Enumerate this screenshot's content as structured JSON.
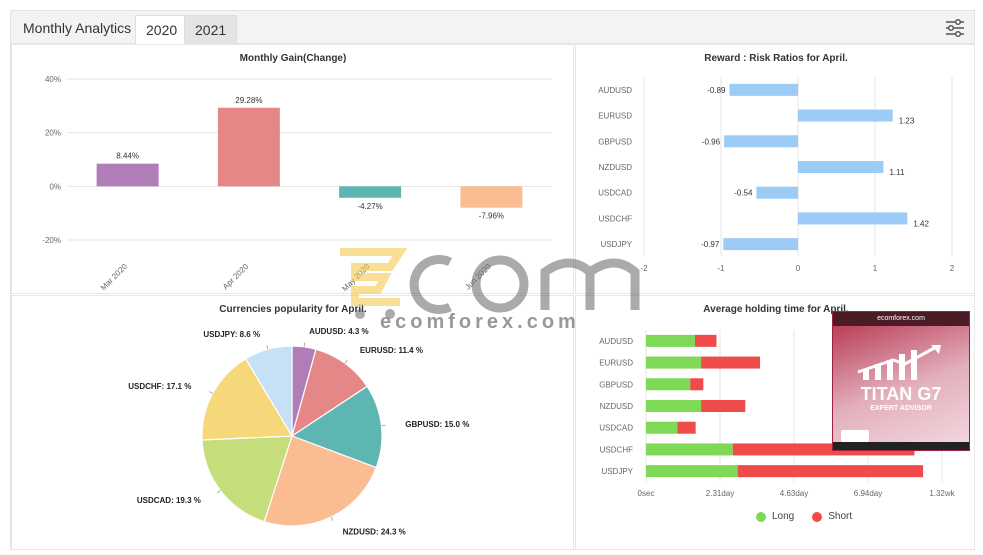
{
  "header": {
    "title": "Monthly Analytics",
    "tabs": [
      {
        "label": "2020",
        "active": true
      },
      {
        "label": "2021",
        "active": false
      }
    ],
    "settings_icon": "sliders-icon"
  },
  "watermark": {
    "text": "ecomforex.com"
  },
  "ad": {
    "top_text": "ecomforex.com",
    "brand": "TITAN G7",
    "subtitle": "EXPERT ADVISOR"
  },
  "legend": {
    "long": "Long",
    "short": "Short",
    "long_color": "#7ed957",
    "short_color": "#ef4b4b"
  },
  "chart_data": [
    {
      "type": "bar",
      "title": "Monthly Gain(Change)",
      "categories": [
        "Mar 2020",
        "Apr 2020",
        "May 2020",
        "Jun 2020"
      ],
      "values": [
        8.44,
        29.28,
        -4.27,
        -7.96
      ],
      "value_labels": [
        "8.44%",
        "29.28%",
        "-4.27%",
        "-7.96%"
      ],
      "colors": [
        "#b07db8",
        "#e58787",
        "#5eb6b2",
        "#fcbc91"
      ],
      "ylim": [
        -20,
        40
      ],
      "yticks": [
        "40%",
        "20%",
        "0%",
        "-20%"
      ],
      "grid": true
    },
    {
      "type": "bar",
      "orientation": "horizontal",
      "title": "Reward : Risk Ratios for April.",
      "categories": [
        "AUDUSD",
        "EURUSD",
        "GBPUSD",
        "NZDUSD",
        "USDCAD",
        "USDCHF",
        "USDJPY"
      ],
      "values": [
        -0.89,
        1.23,
        -0.96,
        1.11,
        -0.54,
        1.42,
        -0.97
      ],
      "value_labels": [
        "-0.89",
        "1.23",
        "-0.96",
        "1.11",
        "-0.54",
        "1.42",
        "-0.97"
      ],
      "color": "#9ccbf5",
      "xlim": [
        -2,
        2
      ],
      "xticks": [
        "-2",
        "-1",
        "0",
        "1",
        "2"
      ],
      "grid": true
    },
    {
      "type": "pie",
      "title": "Currencies popularity for April.",
      "labels": [
        "AUDUSD: 4.3 %",
        "EURUSD: 11.4 %",
        "GBPUSD: 15.0 %",
        "NZDUSD: 24.3 %",
        "USDCAD: 19.3 %",
        "USDCHF: 17.1 %",
        "USDJPY: 8.6 %"
      ],
      "values": [
        4.3,
        11.4,
        15.0,
        24.3,
        19.3,
        17.1,
        8.6
      ],
      "colors": [
        "#b07db8",
        "#e58787",
        "#5eb6b2",
        "#fcbc91",
        "#c5dd7b",
        "#f6d87a",
        "#c6e1f5"
      ]
    },
    {
      "type": "bar",
      "orientation": "horizontal",
      "stacked": true,
      "title": "Average holding time for April.",
      "categories": [
        "AUDUSD",
        "EURUSD",
        "GBPUSD",
        "NZDUSD",
        "USDCAD",
        "USDCHF",
        "USDJPY"
      ],
      "series": [
        {
          "name": "Long",
          "values": [
            1.53,
            1.72,
            1.38,
            1.72,
            0.98,
            2.71,
            2.86
          ],
          "color": "#7ed957"
        },
        {
          "name": "Short",
          "values": [
            0.67,
            1.84,
            0.41,
            1.38,
            0.57,
            5.67,
            5.79
          ],
          "color": "#ef4b4b"
        }
      ],
      "xlim": [
        0,
        9.24
      ],
      "xticks": [
        "0sec",
        "2.31day",
        "4.63day",
        "6.94day",
        "1.32wk"
      ],
      "grid": true
    }
  ]
}
